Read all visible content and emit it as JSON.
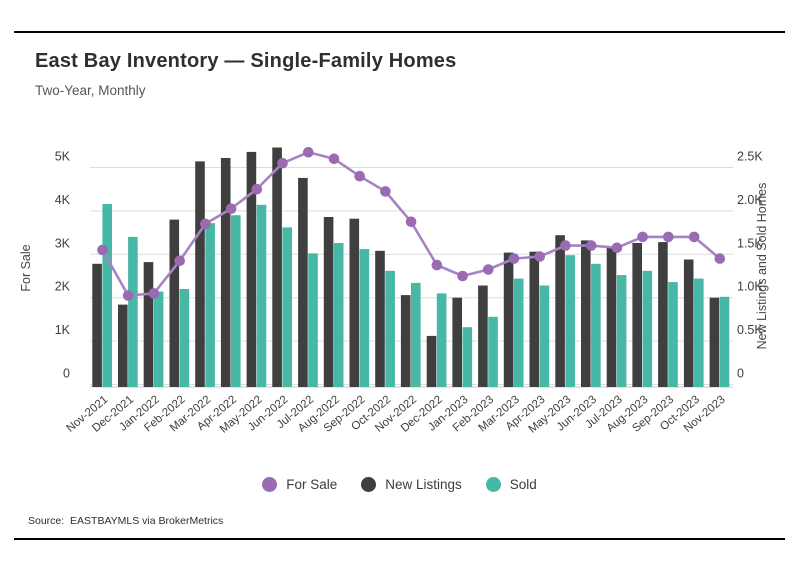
{
  "page": {
    "title": "East Bay Inventory — Single-Family Homes",
    "subtitle": "Two-Year, Monthly",
    "source": "Source:  EASTBAYMLS via BrokerMetrics"
  },
  "legend": {
    "items": [
      {
        "label": "For Sale",
        "color": "#9A6BB0",
        "marker": "circle"
      },
      {
        "label": "New Listings",
        "color": "#3F3F3F",
        "marker": "circle"
      },
      {
        "label": "Sold",
        "color": "#46B8A5",
        "marker": "circle"
      }
    ]
  },
  "chart_data": {
    "type": "bar+line",
    "title": "East Bay Inventory — Single-Family Homes",
    "subtitle": "Two-Year, Monthly",
    "categories": [
      "Nov-2021",
      "Dec-2021",
      "Jan-2022",
      "Feb-2022",
      "Mar-2022",
      "Apr-2022",
      "May-2022",
      "Jun-2022",
      "Jul-2022",
      "Aug-2022",
      "Sep-2022",
      "Oct-2022",
      "Nov-2022",
      "Dec-2022",
      "Jan-2023",
      "Feb-2023",
      "Mar-2023",
      "Apr-2023",
      "May-2023",
      "Jun-2023",
      "Jul-2023",
      "Aug-2023",
      "Sep-2023",
      "Oct-2023",
      "Nov-2023"
    ],
    "series": [
      {
        "name": "New Listings",
        "type": "bar",
        "axis": "right",
        "color": "#3F3F3F",
        "values": [
          1390,
          920,
          1410,
          1900,
          2570,
          2610,
          2680,
          2730,
          2380,
          1930,
          1910,
          1540,
          1030,
          560,
          1000,
          1140,
          1520,
          1530,
          1720,
          1660,
          1590,
          1630,
          1640,
          1440,
          1000
        ]
      },
      {
        "name": "Sold",
        "type": "bar",
        "axis": "right",
        "color": "#46B8A5",
        "values": [
          2080,
          1700,
          1070,
          1100,
          1860,
          1950,
          2070,
          1810,
          1510,
          1630,
          1560,
          1310,
          1170,
          1050,
          660,
          780,
          1220,
          1140,
          1490,
          1390,
          1260,
          1310,
          1180,
          1220,
          1010
        ]
      },
      {
        "name": "For Sale",
        "type": "line",
        "axis": "left",
        "color": "#A583C4",
        "marker_color": "#9A6BB0",
        "values": [
          3100,
          2050,
          2100,
          2850,
          3700,
          4050,
          4500,
          5100,
          5350,
          5200,
          4800,
          4450,
          3750,
          2750,
          2500,
          2650,
          2900,
          2950,
          3200,
          3200,
          3150,
          3400,
          3400,
          3400,
          2900
        ]
      }
    ],
    "left_axis": {
      "label": "For Sale",
      "ticks": [
        "0",
        "1K",
        "2K",
        "3K",
        "4K",
        "5K"
      ],
      "range": [
        0,
        5000
      ],
      "tick_step": 1000
    },
    "right_axis": {
      "label": "New Listings and Sold Homes",
      "ticks": [
        "0",
        "0.5K",
        "1.0K",
        "1.5K",
        "2.0K",
        "2.5K"
      ],
      "range": [
        0,
        2500
      ],
      "tick_step": 500
    },
    "grid": true,
    "legend_position": "bottom",
    "gridline_color": "#dcdcdc"
  }
}
